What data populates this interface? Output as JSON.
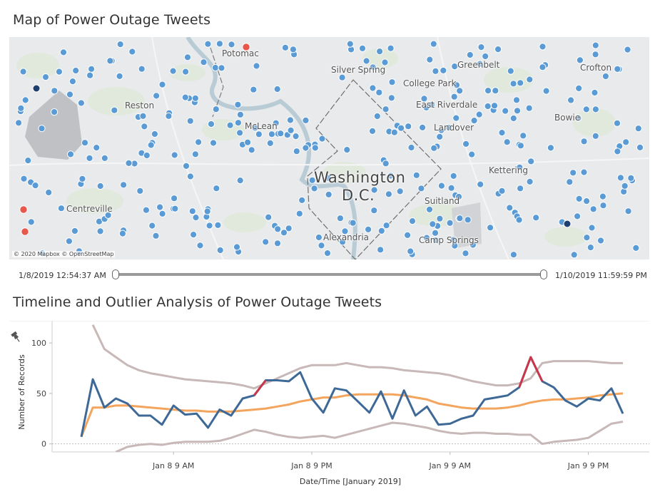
{
  "map_section": {
    "title": "Map of Power Outage Tweets",
    "attribution": "© 2020 Mapbox © OpenStreetMap",
    "places": [
      {
        "name": "Potomac",
        "size": "small"
      },
      {
        "name": "Silver Spring",
        "size": "small"
      },
      {
        "name": "Greenbelt",
        "size": "small"
      },
      {
        "name": "Crofton",
        "size": "small"
      },
      {
        "name": "College Park",
        "size": "small"
      },
      {
        "name": "Reston",
        "size": "small"
      },
      {
        "name": "East Riverdale",
        "size": "small"
      },
      {
        "name": "McLean",
        "size": "small"
      },
      {
        "name": "Landover",
        "size": "small"
      },
      {
        "name": "Bowie",
        "size": "small"
      },
      {
        "name": "Washington",
        "size": "big"
      },
      {
        "name": "D.C.",
        "size": "big"
      },
      {
        "name": "Kettering",
        "size": "small"
      },
      {
        "name": "Centreville",
        "size": "small"
      },
      {
        "name": "Suitland",
        "size": "small"
      },
      {
        "name": "Alexandria",
        "size": "small"
      },
      {
        "name": "Camp Springs",
        "size": "small"
      }
    ],
    "colors": {
      "point": "#5b9bd5",
      "point_dark": "#1f3f6e",
      "outlier": "#e8574b"
    }
  },
  "time_filter": {
    "start": "1/8/2019 12:54:37 AM",
    "end": "1/10/2019 11:59:59 PM",
    "range_fraction": [
      0,
      1
    ]
  },
  "timeline_section": {
    "title": "Timeline and Outlier Analysis of Power Outage Tweets",
    "pin_icon": "pin-icon"
  },
  "chart_data": {
    "type": "line",
    "xlabel": "Date/Time [January 2019]",
    "ylabel": "Number of Records",
    "ylim": [
      -8,
      122
    ],
    "y_ticks": [
      0,
      50,
      100
    ],
    "x_tick_labels": [
      "Jan 8 9 AM",
      "Jan 8 9 PM",
      "Jan 9 9 AM",
      "Jan 9 9 PM"
    ],
    "x_tick_hours": [
      9,
      21,
      33,
      45
    ],
    "x_start_hour": 1,
    "x_step_hours": 1,
    "grid": false,
    "series": [
      {
        "role": "count",
        "color": "#3e6996",
        "values": [
          7,
          64,
          36,
          45,
          40,
          28,
          28,
          19,
          38,
          29,
          30,
          16,
          34,
          28,
          45,
          48,
          63,
          63,
          62,
          71,
          45,
          31,
          55,
          53,
          42,
          31,
          52,
          25,
          53,
          28,
          37,
          19,
          20,
          25,
          28,
          44,
          46,
          48,
          56,
          86,
          62,
          56,
          43,
          37,
          45,
          43,
          55,
          30
        ]
      },
      {
        "role": "moving-average",
        "color": "#f3a45d",
        "values": [
          7,
          36,
          36,
          38,
          38,
          37,
          36,
          35,
          34,
          33,
          33,
          32,
          32,
          32,
          33,
          34,
          35,
          37,
          39,
          42,
          44,
          46,
          46,
          48,
          49,
          49,
          49,
          49,
          48,
          46,
          44,
          40,
          38,
          36,
          35,
          35,
          35,
          36,
          38,
          41,
          43,
          44,
          44,
          45,
          46,
          48,
          49,
          50
        ]
      },
      {
        "role": "upper-band",
        "color": "#c8b8b8",
        "values": [
          null,
          118,
          94,
          86,
          78,
          73,
          70,
          68,
          66,
          64,
          63,
          62,
          61,
          60,
          58,
          55,
          60,
          65,
          70,
          75,
          78,
          78,
          78,
          80,
          78,
          76,
          76,
          75,
          73,
          72,
          71,
          70,
          68,
          65,
          62,
          60,
          58,
          58,
          60,
          65,
          80,
          82,
          82,
          82,
          82,
          81,
          80,
          80
        ]
      },
      {
        "role": "lower-band",
        "color": "#c8b8b8",
        "values": [
          null,
          null,
          null,
          -8,
          -3,
          -1,
          0,
          -1,
          1,
          2,
          2,
          2,
          3,
          6,
          10,
          14,
          12,
          9,
          7,
          6,
          7,
          8,
          6,
          9,
          12,
          15,
          18,
          21,
          20,
          18,
          16,
          13,
          11,
          10,
          11,
          11,
          10,
          10,
          9,
          9,
          0,
          2,
          3,
          4,
          6,
          13,
          20,
          22
        ]
      }
    ],
    "outlier_segments": [
      {
        "from_index": 15,
        "to_index": 16,
        "color": "#c9384a"
      },
      {
        "from_index": 38,
        "to_index": 40,
        "color": "#c9384a"
      }
    ]
  }
}
